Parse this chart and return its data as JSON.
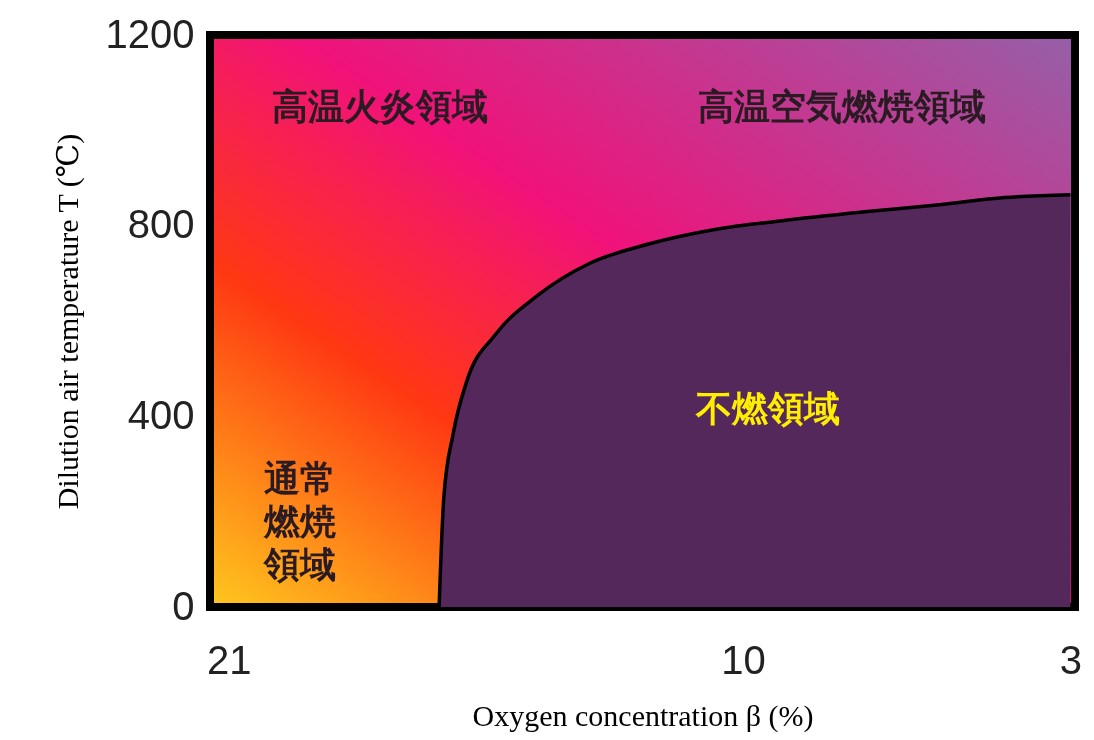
{
  "chart_data": {
    "type": "area",
    "xlabel": "Oxygen concentration  β (%)",
    "ylabel": "Dilution air temperature T (℃)",
    "x": [
      16.5,
      16.4,
      16.2,
      15.9,
      15.3,
      14.4,
      13.3,
      12.0,
      10.6,
      9.2,
      7.4,
      5.8,
      4.4,
      3.0
    ],
    "series": [
      {
        "color": "#54285a",
        "values": [
          0,
          229,
          363,
          476,
          571,
          653,
          720,
          762,
          792,
          810,
          829,
          844,
          859,
          865
        ]
      }
    ],
    "xlim": [
      21.4,
      2.9
    ],
    "xticks": [
      21,
      10,
      3
    ],
    "ylim": [
      0,
      1200
    ],
    "yticks": [
      0,
      400,
      800,
      1200
    ],
    "marker": "none",
    "line_style": "solid",
    "annotations": [
      "高温火炎領域",
      "高温空気燃焼領域",
      "通常燃焼領域",
      "不燃領域"
    ]
  }
}
